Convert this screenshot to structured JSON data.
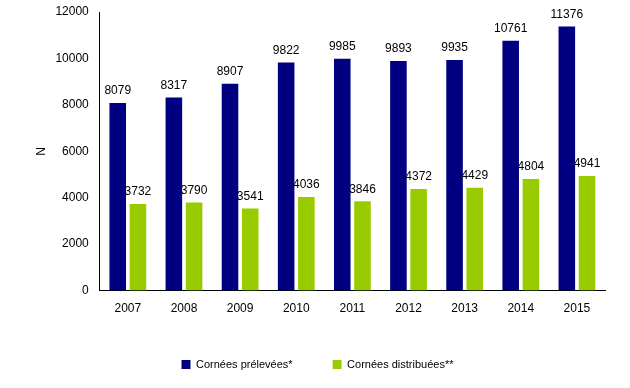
{
  "chart_data": {
    "type": "bar",
    "categories": [
      "2007",
      "2008",
      "2009",
      "2010",
      "2011",
      "2012",
      "2013",
      "2014",
      "2015"
    ],
    "series": [
      {
        "name": "Cornées prélevées*",
        "color": "#000080",
        "values": [
          8079,
          8317,
          8907,
          9822,
          9985,
          9893,
          9935,
          10761,
          11376
        ]
      },
      {
        "name": "Cornées distribuées**",
        "color": "#99cc00",
        "values": [
          3732,
          3790,
          3541,
          4036,
          3846,
          4372,
          4429,
          4804,
          4941
        ]
      }
    ],
    "ylabel": "N",
    "ylim": [
      0,
      12000
    ],
    "yticks": [
      0,
      2000,
      4000,
      6000,
      8000,
      10000,
      12000
    ],
    "grid": false,
    "legend": "bottom",
    "data_labels": true
  }
}
